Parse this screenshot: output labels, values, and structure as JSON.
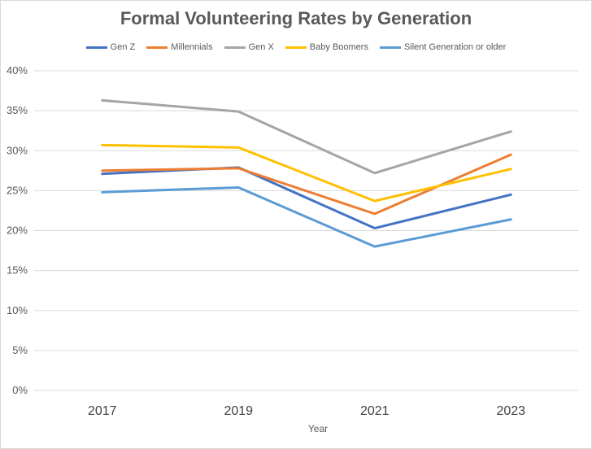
{
  "chart_data": {
    "type": "line",
    "title": "Formal Volunteering Rates by Generation",
    "xlabel": "Year",
    "ylabel": "",
    "categories": [
      "2017",
      "2019",
      "2021",
      "2023"
    ],
    "y_ticks": [
      "0%",
      "5%",
      "10%",
      "15%",
      "20%",
      "25%",
      "30%",
      "35%",
      "40%"
    ],
    "ylim": [
      0,
      40
    ],
    "y_unit": "%",
    "grid": "horizontal",
    "legend_position": "top",
    "series": [
      {
        "name": "Gen Z",
        "color": "#4472c4",
        "values": [
          27.1,
          27.9,
          20.3,
          24.5
        ]
      },
      {
        "name": "Millennials",
        "color": "#ed7d31",
        "values": [
          27.5,
          27.8,
          22.1,
          29.5
        ]
      },
      {
        "name": "Gen X",
        "color": "#a5a5a5",
        "values": [
          36.3,
          34.9,
          27.2,
          32.4
        ]
      },
      {
        "name": "Baby Boomers",
        "color": "#ffc000",
        "values": [
          30.7,
          30.4,
          23.7,
          27.7
        ]
      },
      {
        "name": "Silent Generation or older",
        "color": "#5b9bd5",
        "values": [
          24.8,
          25.4,
          18.0,
          21.4
        ]
      }
    ]
  }
}
